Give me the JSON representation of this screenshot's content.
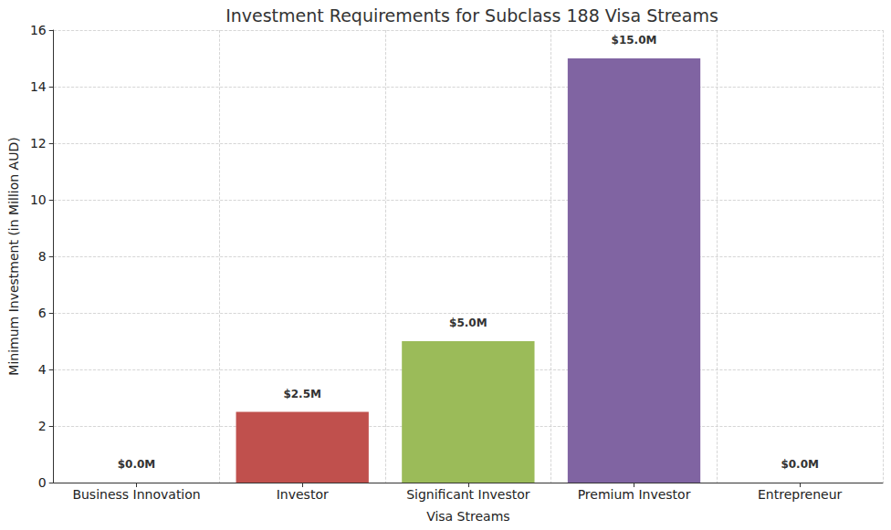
{
  "chart_data": {
    "type": "bar",
    "title": "Investment Requirements for Subclass 188 Visa Streams",
    "x_label": "Visa Streams",
    "y_label": "Minimum Investment (in Million AUD)",
    "categories": [
      "Business Innovation",
      "Investor",
      "Significant Investor",
      "Premium Investor",
      "Entrepreneur"
    ],
    "values": [
      0,
      2.5,
      5,
      15,
      0
    ],
    "value_labels": [
      "$0.0M",
      "$2.5M",
      "$5.0M",
      "$15.0M",
      "$0.0M"
    ],
    "colors": [
      "#4f81bd",
      "#c0504d",
      "#9bbb59",
      "#8064a2",
      "#4bacc6"
    ],
    "ylim": [
      0,
      16
    ],
    "yticks": [
      0,
      2,
      4,
      6,
      8,
      10,
      12,
      14,
      16
    ],
    "grid": true,
    "data_labels": true
  }
}
